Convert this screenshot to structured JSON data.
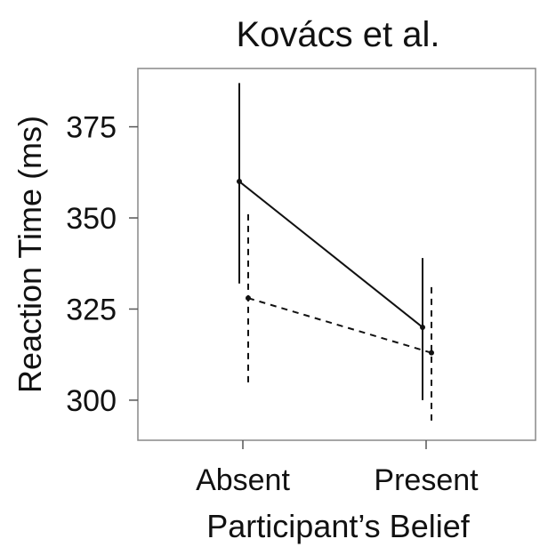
{
  "chart_data": {
    "type": "line",
    "title": "Kovács et al.",
    "xlabel": "Participant’s Belief",
    "ylabel": "Reaction Time (ms)",
    "categories": [
      "Absent",
      "Present"
    ],
    "ylim": [
      289,
      391
    ],
    "yticks": [
      300,
      325,
      350,
      375
    ],
    "grid": false,
    "series": [
      {
        "line_style": "solid",
        "values": [
          360,
          320
        ],
        "error_low": [
          332,
          300
        ],
        "error_high": [
          387,
          339
        ]
      },
      {
        "line_style": "dashed",
        "values": [
          328,
          313
        ],
        "error_low": [
          304,
          293
        ],
        "error_high": [
          351,
          331
        ]
      }
    ]
  }
}
